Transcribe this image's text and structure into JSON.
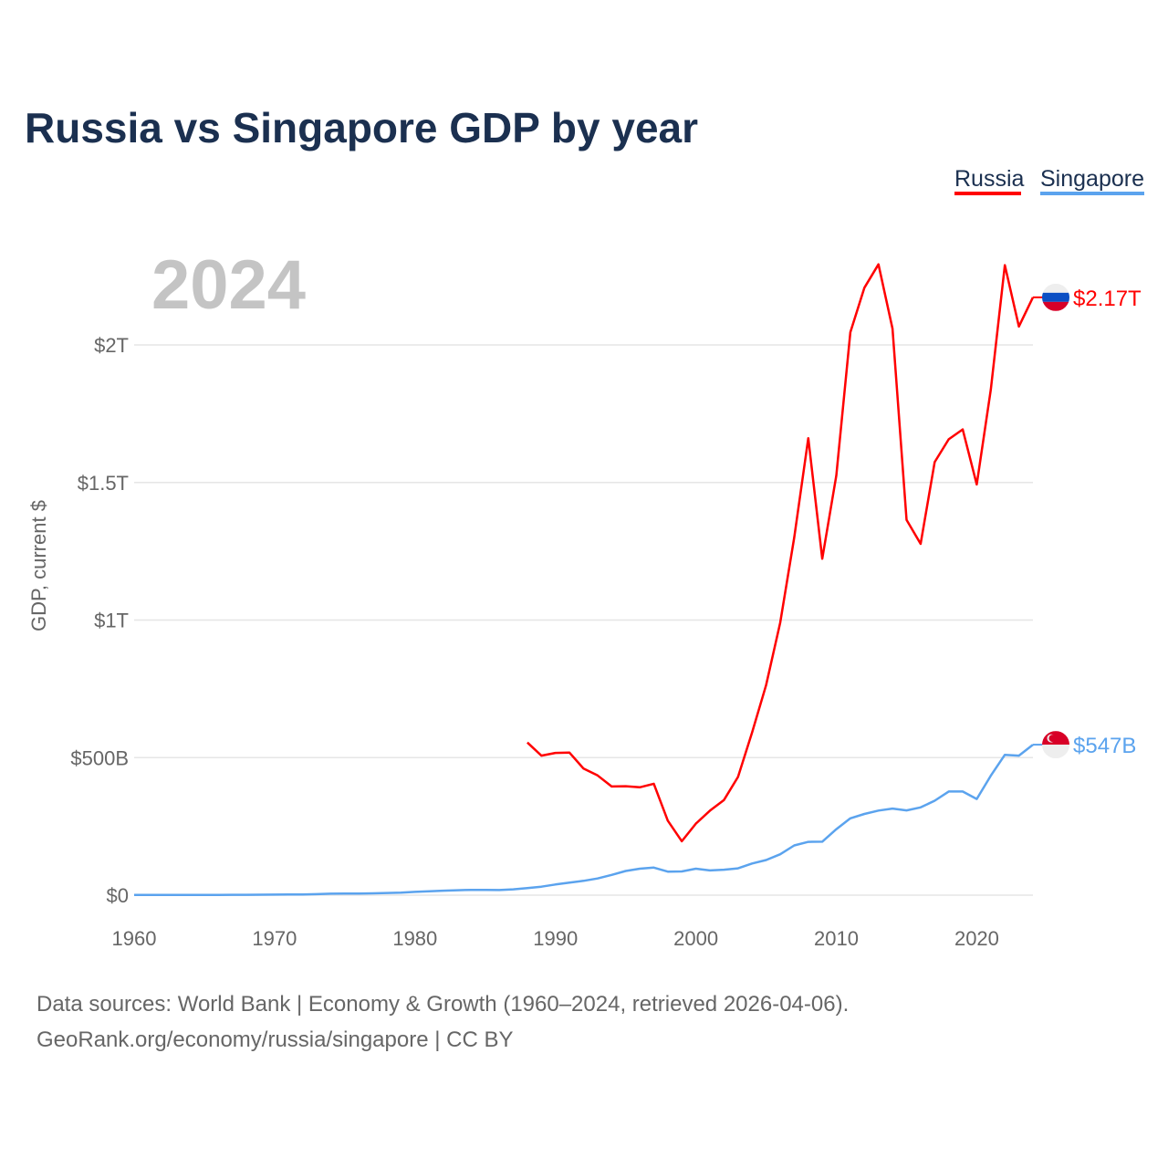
{
  "chart_data": {
    "type": "line",
    "title": "Russia vs Singapore GDP by year",
    "ylabel": "GDP, current $",
    "xlabel": "",
    "year_label": "2024",
    "xlim": [
      1960,
      2024
    ],
    "ylim": [
      0,
      2300
    ],
    "units": "billions USD",
    "grid": true,
    "legend_position": "top-right",
    "x_ticks": [
      1960,
      1970,
      1980,
      1990,
      2000,
      2010,
      2020
    ],
    "x_tick_labels": [
      "1960",
      "1970",
      "1980",
      "1990",
      "2000",
      "2010",
      "2020"
    ],
    "y_ticks": [
      0,
      500,
      1000,
      1500,
      2000
    ],
    "y_tick_labels": [
      "$0",
      "$500B",
      "$1T",
      "$1.5T",
      "$2T"
    ],
    "series": [
      {
        "name": "Russia",
        "color": "#ff0000",
        "end_label": "$2.17T",
        "flag": "russia-flag",
        "x": [
          1988,
          1989,
          1990,
          1991,
          1992,
          1993,
          1994,
          1995,
          1996,
          1997,
          1998,
          1999,
          2000,
          2001,
          2002,
          2003,
          2004,
          2005,
          2006,
          2007,
          2008,
          2009,
          2010,
          2011,
          2012,
          2013,
          2014,
          2015,
          2016,
          2017,
          2018,
          2019,
          2020,
          2021,
          2022,
          2023,
          2024
        ],
        "values": [
          555,
          507,
          517,
          518,
          460,
          435,
          395,
          396,
          392,
          405,
          271,
          196,
          260,
          307,
          346,
          430,
          591,
          764,
          990,
          1300,
          1661,
          1223,
          1525,
          2046,
          2208,
          2293,
          2059,
          1364,
          1277,
          1574,
          1657,
          1693,
          1493,
          1837,
          2290,
          2067,
          2173
        ]
      },
      {
        "name": "Singapore",
        "color": "#5ba3ee",
        "end_label": "$547B",
        "flag": "singapore-flag",
        "x": [
          1960,
          1961,
          1962,
          1963,
          1964,
          1965,
          1966,
          1967,
          1968,
          1969,
          1970,
          1971,
          1972,
          1973,
          1974,
          1975,
          1976,
          1977,
          1978,
          1979,
          1980,
          1981,
          1982,
          1983,
          1984,
          1985,
          1986,
          1987,
          1988,
          1989,
          1990,
          1991,
          1992,
          1993,
          1994,
          1995,
          1996,
          1997,
          1998,
          1999,
          2000,
          2001,
          2002,
          2003,
          2004,
          2005,
          2006,
          2007,
          2008,
          2009,
          2010,
          2011,
          2012,
          2013,
          2014,
          2015,
          2016,
          2017,
          2018,
          2019,
          2020,
          2021,
          2022,
          2023,
          2024
        ],
        "values": [
          0.7,
          0.8,
          0.8,
          0.9,
          0.9,
          1.0,
          1.1,
          1.2,
          1.4,
          1.7,
          1.9,
          2.3,
          2.7,
          3.7,
          5.2,
          5.6,
          6.0,
          6.7,
          7.8,
          9.4,
          11.9,
          14.2,
          16.1,
          18.0,
          19.4,
          18.9,
          18.7,
          21.1,
          25.9,
          30.8,
          38.9,
          45.5,
          52.1,
          60.6,
          73.7,
          87.9,
          96.3,
          100.1,
          85.7,
          86.3,
          96.1,
          89.8,
          92.5,
          97.6,
          115,
          127.8,
          148.6,
          180.9,
          193.6,
          194.2,
          239.8,
          279.4,
          295.1,
          307.6,
          314.9,
          308,
          319,
          343.3,
          376.9,
          376.8,
          349.5,
          434.1,
          510,
          507,
          547
        ]
      }
    ]
  },
  "footer": {
    "line1": "Data sources: World Bank | Economy & Growth (1960–2024, retrieved 2026-04-06).",
    "line2": "GeoRank.org/economy/russia/singapore | CC BY"
  }
}
